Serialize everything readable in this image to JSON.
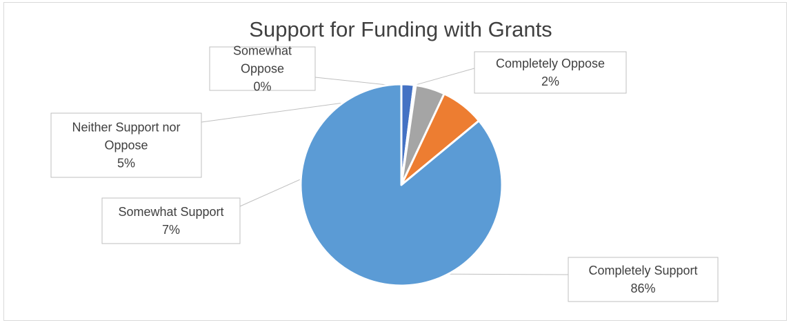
{
  "chart_data": {
    "type": "pie",
    "title": "Support for Funding with Grants",
    "slices": [
      {
        "name": "Completely Oppose",
        "value": 2,
        "label_pct": "2%",
        "color": "#4472c4"
      },
      {
        "name": "Somewhat Oppose",
        "value": 0.3,
        "label_pct": "0%",
        "color": "#ffc000"
      },
      {
        "name": "Neither Support nor Oppose",
        "value": 4.7,
        "label_pct": "5%",
        "color": "#a5a5a5"
      },
      {
        "name": "Somewhat Support",
        "value": 7,
        "label_pct": "7%",
        "color": "#ed7d31"
      },
      {
        "name": "Completely Support",
        "value": 86,
        "label_pct": "86%",
        "color": "#5b9bd5"
      }
    ],
    "legend": "none",
    "data_labels": "callouts"
  }
}
